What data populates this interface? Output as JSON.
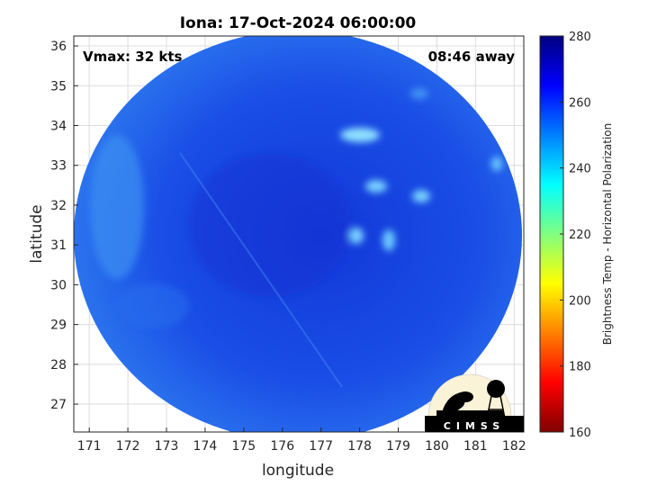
{
  "title": "Iona: 17-Oct-2024 06:00:00",
  "annotations": {
    "vmax": "Vmax: 32 kts",
    "away": "08:46 away"
  },
  "logo_text": "CIMSS",
  "chart_data": {
    "type": "heatmap",
    "title": "Iona: 17-Oct-2024 06:00:00",
    "xlabel": "longitude",
    "ylabel": "latitude",
    "xlim": [
      170.6,
      182.25
    ],
    "ylim": [
      26.3,
      36.25
    ],
    "xticks": [
      "171",
      "172",
      "173",
      "174",
      "175",
      "176",
      "177",
      "178",
      "179",
      "180",
      "181",
      "182"
    ],
    "yticks": [
      "27",
      "28",
      "29",
      "30",
      "31",
      "32",
      "33",
      "34",
      "35",
      "36"
    ],
    "grid": true,
    "colorbar": {
      "label": "Brightness Temp - Horizontal Polarization",
      "range": [
        160,
        280
      ],
      "ticks": [
        "160",
        "180",
        "200",
        "220",
        "240",
        "260",
        "280"
      ],
      "colormap": "jet",
      "position": "right"
    },
    "dominant_value_range": [
      245,
      268
    ],
    "colors": {
      "field": "#1a50e8",
      "cold_spots": "#6ec8ff",
      "edge": "#3a8cf0"
    }
  }
}
